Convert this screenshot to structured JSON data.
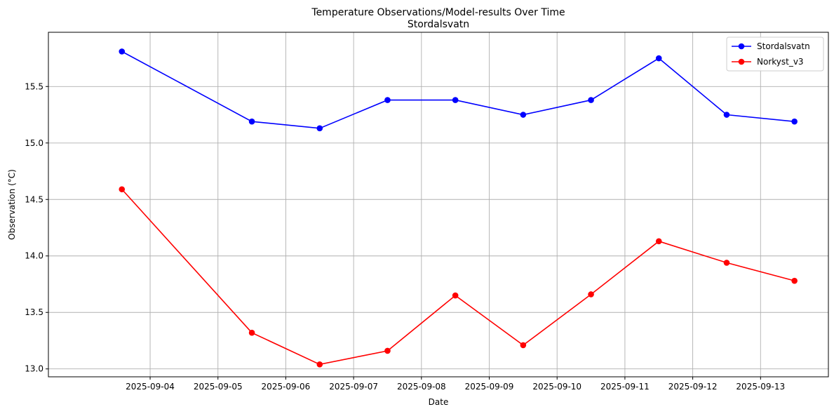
{
  "chart_data": {
    "type": "line",
    "title": "Temperature Observations/Model-results Over Time",
    "subtitle": "Stordalsvatn",
    "xlabel": "Date",
    "ylabel": "Observation (°C)",
    "x_ticks": [
      "2025-09-04",
      "2025-09-05",
      "2025-09-06",
      "2025-09-07",
      "2025-09-08",
      "2025-09-09",
      "2025-09-10",
      "2025-09-11",
      "2025-09-12",
      "2025-09-13"
    ],
    "y_ticks": [
      "13.0",
      "13.5",
      "14.0",
      "14.5",
      "15.0",
      "15.5"
    ],
    "xlim": [
      "2025-09-02 12:00",
      "2025-09-14 00:00"
    ],
    "ylim": [
      12.93,
      15.98
    ],
    "grid": true,
    "legend_position": "top-right",
    "series": [
      {
        "name": "Stordalsvatn",
        "color": "#0000ff",
        "x": [
          "2025-09-03 14:00",
          "2025-09-05 12:00",
          "2025-09-06 12:00",
          "2025-09-07 12:00",
          "2025-09-08 12:00",
          "2025-09-09 12:00",
          "2025-09-10 12:00",
          "2025-09-11 12:00",
          "2025-09-12 12:00",
          "2025-09-13 12:00"
        ],
        "values": [
          15.81,
          15.19,
          15.13,
          15.38,
          15.38,
          15.25,
          15.38,
          15.75,
          15.25,
          15.19
        ]
      },
      {
        "name": "Norkyst_v3",
        "color": "#ff0000",
        "x": [
          "2025-09-03 14:00",
          "2025-09-05 12:00",
          "2025-09-06 12:00",
          "2025-09-07 12:00",
          "2025-09-08 12:00",
          "2025-09-09 12:00",
          "2025-09-10 12:00",
          "2025-09-11 12:00",
          "2025-09-12 12:00",
          "2025-09-13 12:00"
        ],
        "values": [
          14.59,
          13.32,
          13.04,
          13.16,
          13.65,
          13.21,
          13.66,
          14.13,
          13.94,
          13.78
        ]
      }
    ]
  }
}
